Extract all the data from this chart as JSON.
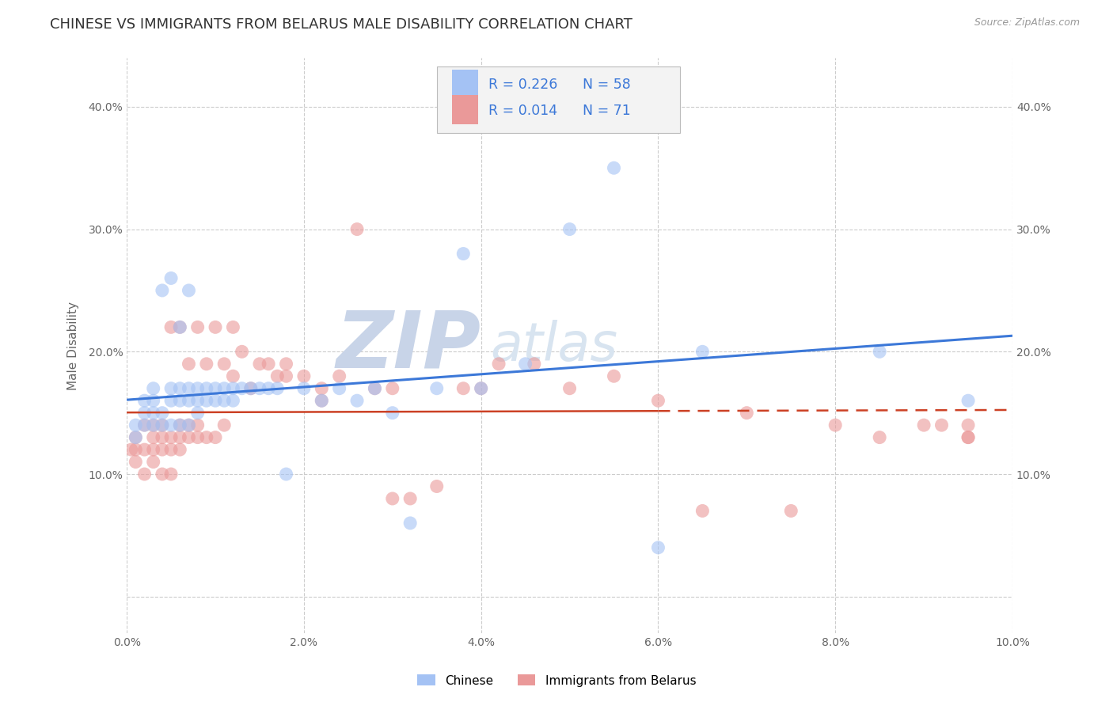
{
  "title": "CHINESE VS IMMIGRANTS FROM BELARUS MALE DISABILITY CORRELATION CHART",
  "source": "Source: ZipAtlas.com",
  "ylabel": "Male Disability",
  "xlim": [
    0.0,
    0.1
  ],
  "ylim": [
    -0.03,
    0.44
  ],
  "xticks": [
    0.0,
    0.02,
    0.04,
    0.06,
    0.08,
    0.1
  ],
  "xtick_labels": [
    "0.0%",
    "2.0%",
    "4.0%",
    "6.0%",
    "8.0%",
    "10.0%"
  ],
  "yticks": [
    0.0,
    0.1,
    0.2,
    0.3,
    0.4
  ],
  "ytick_labels": [
    "",
    "10.0%",
    "20.0%",
    "30.0%",
    "40.0%"
  ],
  "chinese_R": 0.226,
  "chinese_N": 58,
  "belarus_R": 0.014,
  "belarus_N": 71,
  "chinese_color": "#a4c2f4",
  "belarus_color": "#ea9999",
  "chinese_line_color": "#3c78d8",
  "belarus_line_color": "#cc4125",
  "background_color": "#ffffff",
  "grid_color": "#cccccc",
  "legend_box_color": "#f3f3f3",
  "watermark_color": "#d0d8e8",
  "title_fontsize": 13,
  "axis_label_fontsize": 11,
  "tick_fontsize": 10,
  "legend_fontsize": 13,
  "chinese_x": [
    0.001,
    0.001,
    0.002,
    0.002,
    0.002,
    0.003,
    0.003,
    0.003,
    0.003,
    0.004,
    0.004,
    0.004,
    0.005,
    0.005,
    0.005,
    0.005,
    0.006,
    0.006,
    0.006,
    0.006,
    0.007,
    0.007,
    0.007,
    0.007,
    0.008,
    0.008,
    0.008,
    0.009,
    0.009,
    0.01,
    0.01,
    0.011,
    0.011,
    0.012,
    0.012,
    0.013,
    0.014,
    0.015,
    0.016,
    0.017,
    0.018,
    0.02,
    0.022,
    0.024,
    0.026,
    0.028,
    0.03,
    0.032,
    0.035,
    0.038,
    0.04,
    0.045,
    0.05,
    0.055,
    0.06,
    0.065,
    0.085,
    0.095
  ],
  "chinese_y": [
    0.13,
    0.14,
    0.14,
    0.15,
    0.16,
    0.14,
    0.15,
    0.16,
    0.17,
    0.14,
    0.15,
    0.25,
    0.14,
    0.16,
    0.17,
    0.26,
    0.14,
    0.16,
    0.17,
    0.22,
    0.14,
    0.16,
    0.17,
    0.25,
    0.15,
    0.16,
    0.17,
    0.16,
    0.17,
    0.16,
    0.17,
    0.16,
    0.17,
    0.17,
    0.16,
    0.17,
    0.17,
    0.17,
    0.17,
    0.17,
    0.1,
    0.17,
    0.16,
    0.17,
    0.16,
    0.17,
    0.15,
    0.06,
    0.17,
    0.28,
    0.17,
    0.19,
    0.3,
    0.35,
    0.04,
    0.2,
    0.2,
    0.16
  ],
  "belarus_x": [
    0.0005,
    0.001,
    0.001,
    0.001,
    0.002,
    0.002,
    0.002,
    0.003,
    0.003,
    0.003,
    0.003,
    0.004,
    0.004,
    0.004,
    0.004,
    0.005,
    0.005,
    0.005,
    0.005,
    0.006,
    0.006,
    0.006,
    0.006,
    0.007,
    0.007,
    0.007,
    0.008,
    0.008,
    0.008,
    0.009,
    0.009,
    0.01,
    0.01,
    0.011,
    0.011,
    0.012,
    0.012,
    0.013,
    0.014,
    0.015,
    0.016,
    0.017,
    0.018,
    0.02,
    0.022,
    0.024,
    0.026,
    0.028,
    0.03,
    0.032,
    0.035,
    0.038,
    0.04,
    0.042,
    0.046,
    0.05,
    0.055,
    0.06,
    0.065,
    0.07,
    0.075,
    0.08,
    0.085,
    0.09,
    0.092,
    0.095,
    0.095,
    0.095,
    0.018,
    0.022,
    0.03
  ],
  "belarus_y": [
    0.12,
    0.11,
    0.12,
    0.13,
    0.1,
    0.12,
    0.14,
    0.11,
    0.12,
    0.13,
    0.14,
    0.1,
    0.12,
    0.13,
    0.14,
    0.1,
    0.12,
    0.13,
    0.22,
    0.12,
    0.13,
    0.14,
    0.22,
    0.13,
    0.19,
    0.14,
    0.13,
    0.14,
    0.22,
    0.13,
    0.19,
    0.13,
    0.22,
    0.14,
    0.19,
    0.18,
    0.22,
    0.2,
    0.17,
    0.19,
    0.19,
    0.18,
    0.18,
    0.18,
    0.17,
    0.18,
    0.3,
    0.17,
    0.17,
    0.08,
    0.09,
    0.17,
    0.17,
    0.19,
    0.19,
    0.17,
    0.18,
    0.16,
    0.07,
    0.15,
    0.07,
    0.14,
    0.13,
    0.14,
    0.14,
    0.13,
    0.14,
    0.13,
    0.19,
    0.16,
    0.08
  ]
}
